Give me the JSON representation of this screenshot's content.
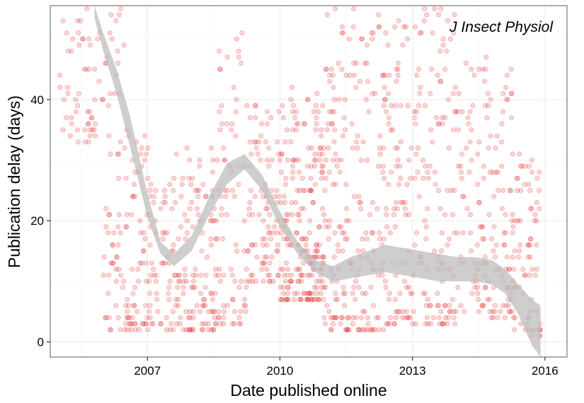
{
  "chart_data": {
    "type": "scatter",
    "title": "",
    "annotation": "J Insect Physiol",
    "xlabel": "Date published online",
    "ylabel": "Publication delay (days)",
    "xlim": [
      2004.8,
      2016.5
    ],
    "ylim": [
      -2.5,
      55.5
    ],
    "x_ticks": [
      2007,
      2010,
      2013,
      2016
    ],
    "x_tick_labels": [
      "2007",
      "2010",
      "2013",
      "2016"
    ],
    "y_ticks": [
      0,
      20,
      40
    ],
    "y_tick_labels": [
      "0",
      "20",
      "40"
    ],
    "grid": true,
    "legend": "none",
    "point_color": "#e31a1c",
    "point_alpha": 0.18,
    "band_color": "#bdbdbd",
    "series": [
      {
        "kind": "points",
        "density_profile": [
          {
            "x_range": [
              2005.0,
              2006.0
            ],
            "y_range": [
              33,
              55
            ],
            "n": 55
          },
          {
            "x_range": [
              2006.0,
              2006.5
            ],
            "y_range": [
              2,
              55
            ],
            "n": 60
          },
          {
            "x_range": [
              2006.5,
              2007.2
            ],
            "y_range": [
              2,
              35
            ],
            "n": 90
          },
          {
            "x_range": [
              2007.2,
              2008.6
            ],
            "y_range": [
              2,
              32
            ],
            "n": 160
          },
          {
            "x_range": [
              2008.6,
              2009.3
            ],
            "y_range": [
              3,
              55
            ],
            "n": 80
          },
          {
            "x_range": [
              2009.3,
              2010.0
            ],
            "y_range": [
              10,
              40
            ],
            "n": 90
          },
          {
            "x_range": [
              2010.0,
              2011.0
            ],
            "y_range": [
              7,
              42
            ],
            "n": 220
          },
          {
            "x_range": [
              2011.0,
              2012.5
            ],
            "y_range": [
              2,
              55
            ],
            "n": 230
          },
          {
            "x_range": [
              2012.5,
              2014.0
            ],
            "y_range": [
              3,
              55
            ],
            "n": 200
          },
          {
            "x_range": [
              2014.0,
              2015.3
            ],
            "y_range": [
              4,
              47
            ],
            "n": 160
          },
          {
            "x_range": [
              2015.3,
              2015.9
            ],
            "y_range": [
              1,
              31
            ],
            "n": 70
          }
        ]
      },
      {
        "kind": "smooth",
        "x": [
          2005.8,
          2006.0,
          2006.3,
          2006.6,
          2007.0,
          2007.3,
          2007.6,
          2008.0,
          2008.4,
          2008.8,
          2009.2,
          2009.6,
          2010.0,
          2010.4,
          2010.8,
          2011.2,
          2011.6,
          2012.0,
          2012.4,
          2012.8,
          2013.2,
          2013.6,
          2014.0,
          2014.4,
          2014.8,
          2015.1,
          2015.4,
          2015.7,
          2015.9
        ],
        "lower": [
          53.5,
          48.0,
          41.0,
          32.5,
          20.5,
          14.5,
          12.5,
          15.0,
          21.0,
          26.0,
          28.5,
          25.0,
          19.0,
          14.5,
          11.5,
          10.0,
          10.5,
          11.0,
          11.5,
          11.0,
          10.5,
          10.0,
          10.0,
          10.0,
          9.5,
          8.0,
          4.5,
          -0.5,
          -2.5
        ],
        "upper": [
          55.5,
          51.0,
          45.0,
          37.5,
          24.5,
          16.5,
          14.5,
          17.5,
          24.0,
          29.5,
          31.0,
          27.5,
          21.5,
          16.5,
          13.5,
          12.5,
          14.0,
          15.0,
          16.0,
          15.5,
          15.0,
          14.5,
          14.0,
          14.0,
          13.5,
          12.0,
          9.5,
          7.0,
          6.0
        ]
      }
    ]
  }
}
